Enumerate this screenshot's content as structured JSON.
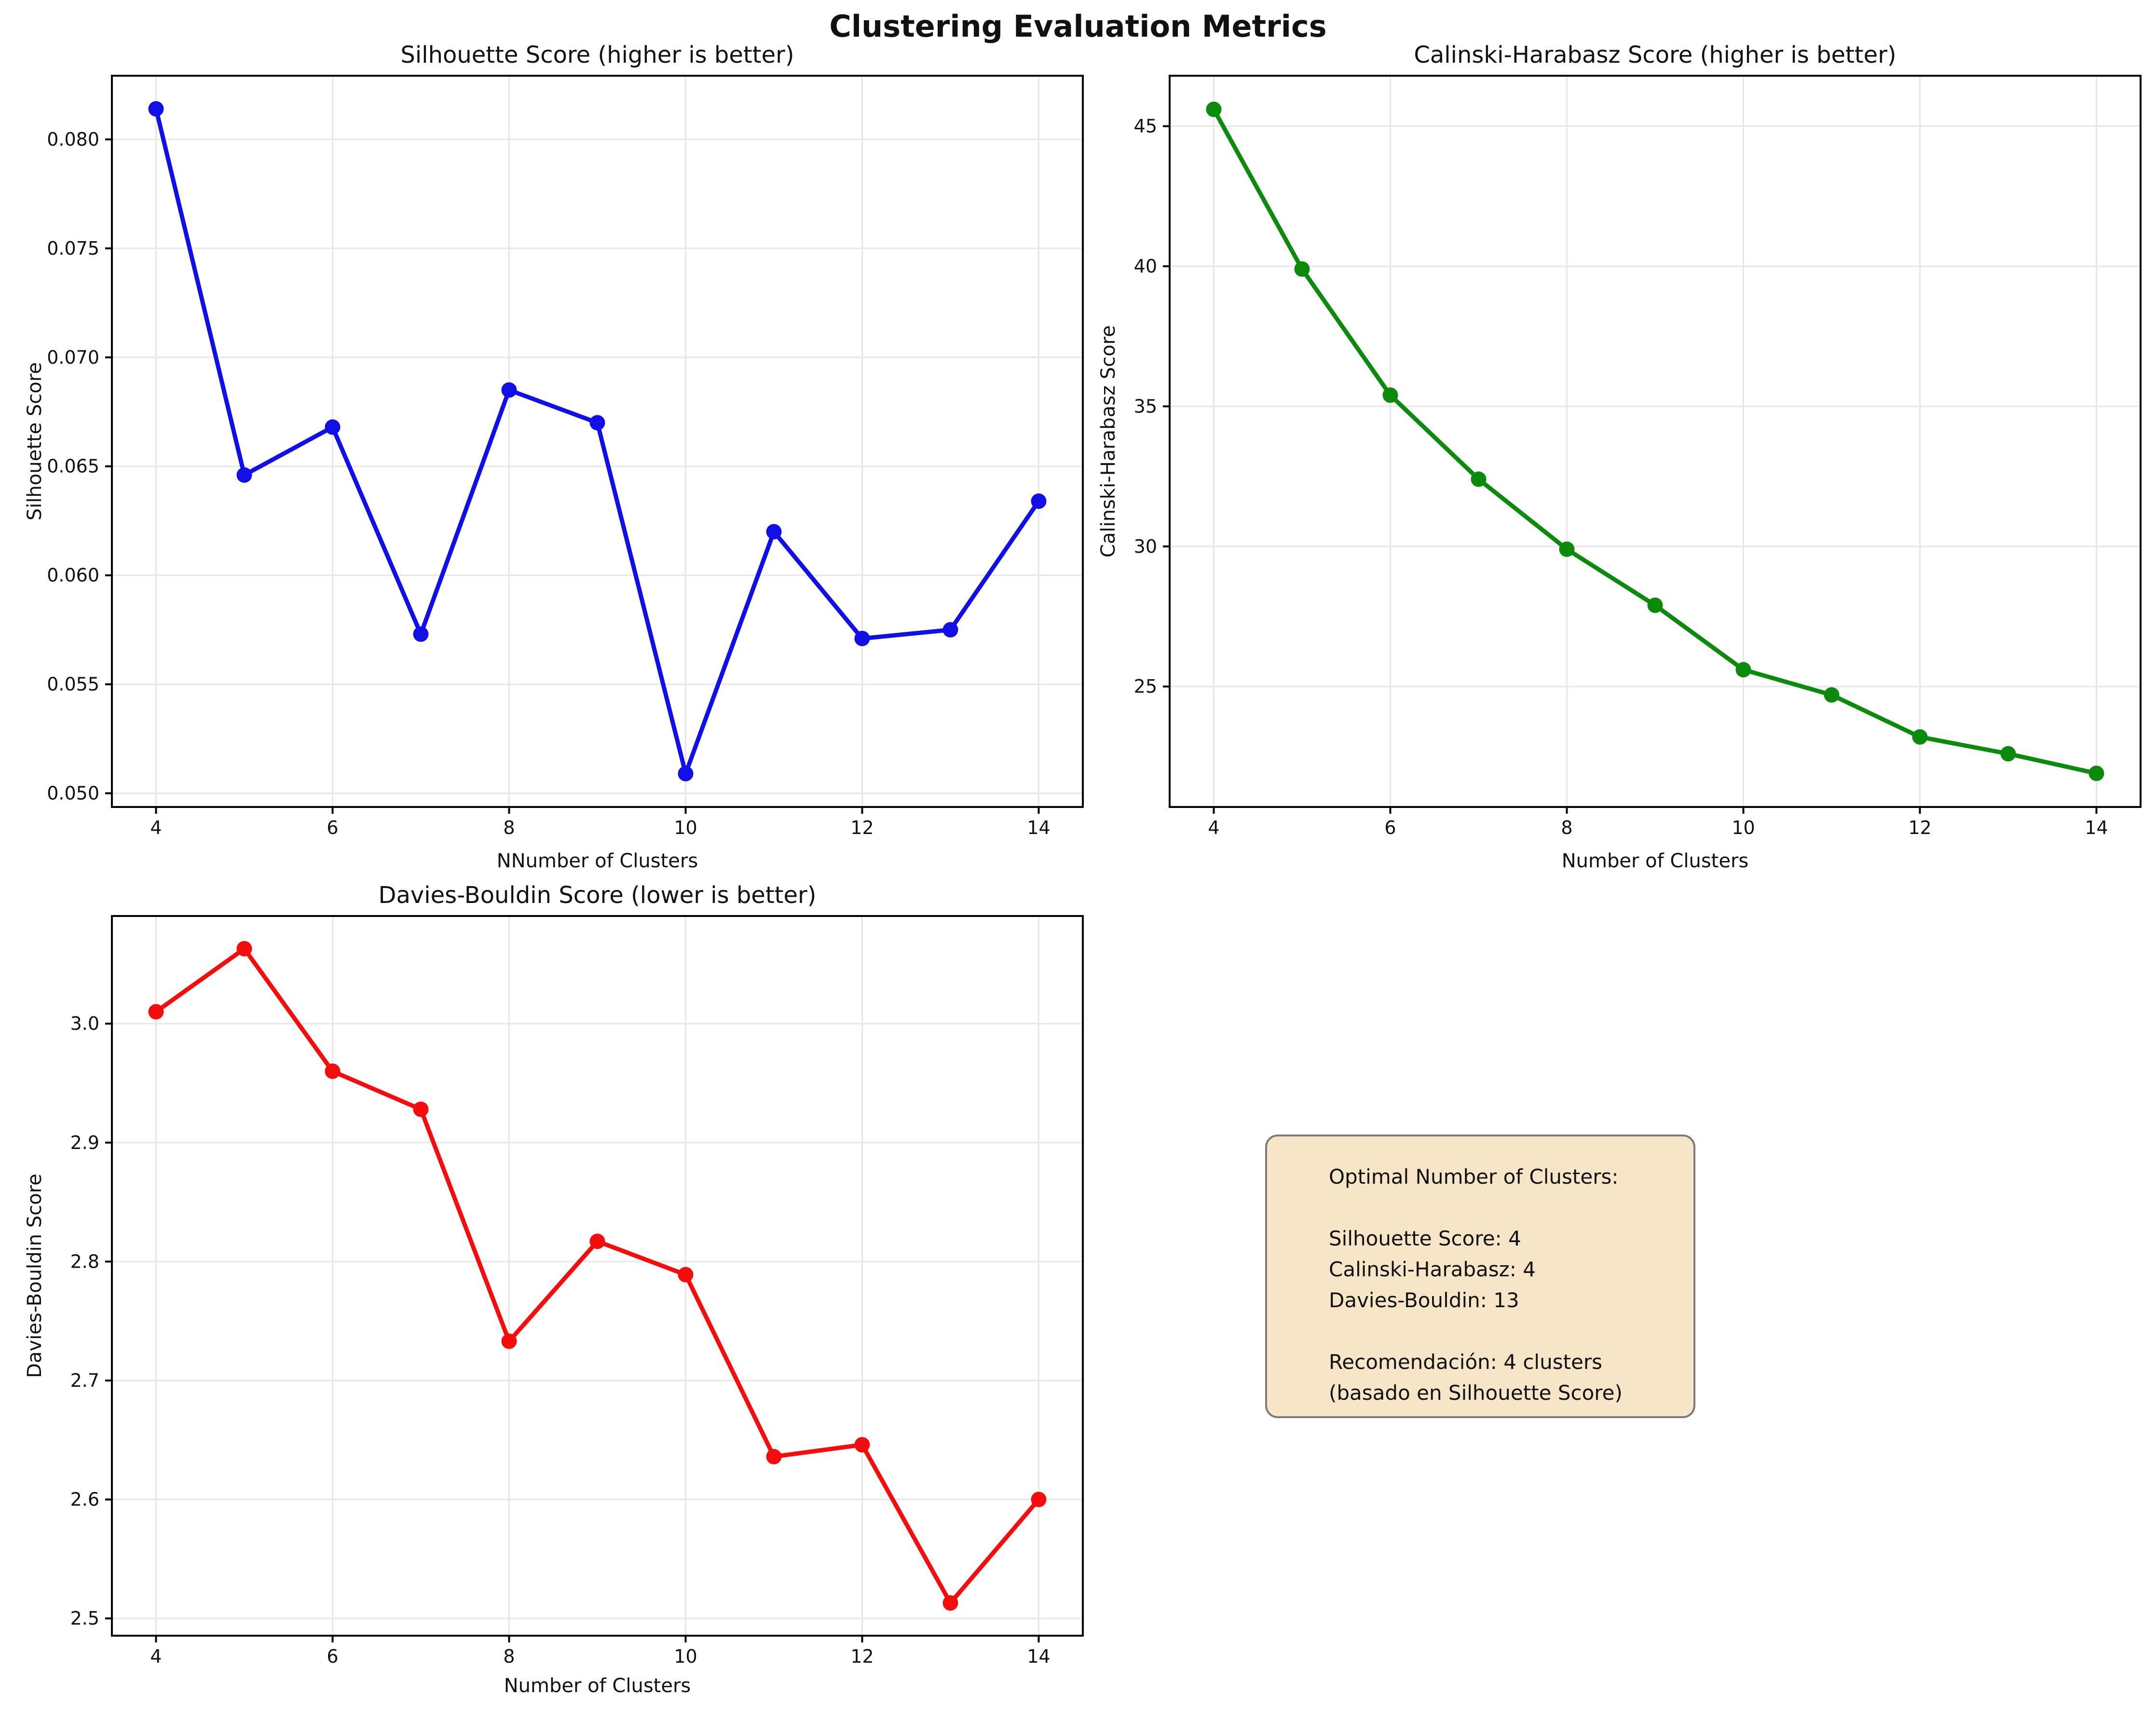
{
  "figure": {
    "title": "Clustering Evaluation Metrics",
    "background": "#ffffff"
  },
  "chart_data": [
    {
      "id": "silhouette",
      "type": "line",
      "title": "Silhouette Score (higher is better)",
      "xlabel": "NNumber of Clusters",
      "ylabel": "Silhouette Score",
      "color": "#0f0fe6",
      "x": [
        4,
        5,
        6,
        7,
        8,
        9,
        10,
        11,
        12,
        13,
        14
      ],
      "y": [
        0.0814,
        0.0646,
        0.0668,
        0.0573,
        0.0685,
        0.067,
        0.0509,
        0.062,
        0.0571,
        0.0575,
        0.0634
      ],
      "xlim": [
        3.5,
        14.5
      ],
      "ylim": [
        0.04937,
        0.08292
      ],
      "xticks": [
        4,
        6,
        8,
        10,
        12,
        14
      ],
      "yticks": [
        0.05,
        0.055,
        0.06,
        0.065,
        0.07,
        0.075,
        0.08
      ],
      "xtick_decimals": 0,
      "ytick_decimals": 3,
      "grid": true,
      "legend": null
    },
    {
      "id": "calinski-harabasz",
      "type": "line",
      "title": "Calinski-Harabasz Score (higher is better)",
      "xlabel": "Number of Clusters",
      "ylabel": "Calinski-Harabasz Score",
      "color": "#0c8a0c",
      "x": [
        4,
        5,
        6,
        7,
        8,
        9,
        10,
        11,
        12,
        13,
        14
      ],
      "y": [
        45.6,
        39.9,
        35.4,
        32.4,
        29.9,
        27.9,
        25.6,
        24.7,
        23.2,
        22.6,
        21.9
      ],
      "xlim": [
        3.5,
        14.5
      ],
      "ylim": [
        20.7,
        46.8
      ],
      "xticks": [
        4,
        6,
        8,
        10,
        12,
        14
      ],
      "yticks": [
        25,
        30,
        35,
        40,
        45
      ],
      "xtick_decimals": 0,
      "ytick_decimals": 0,
      "grid": true,
      "legend": null
    },
    {
      "id": "davies-bouldin",
      "type": "line",
      "title": "Davies-Bouldin Score (lower is better)",
      "xlabel": "Number of Clusters",
      "ylabel": "Davies-Bouldin Score",
      "color": "#f50d0d",
      "x": [
        4,
        5,
        6,
        7,
        8,
        9,
        10,
        11,
        12,
        13,
        14
      ],
      "y": [
        3.01,
        3.063,
        2.96,
        2.928,
        2.733,
        2.817,
        2.789,
        2.636,
        2.646,
        2.513,
        2.6
      ],
      "xlim": [
        3.5,
        14.5
      ],
      "ylim": [
        2.4855,
        3.0905
      ],
      "xticks": [
        4,
        6,
        8,
        10,
        12,
        14
      ],
      "yticks": [
        2.5,
        2.6,
        2.7,
        2.8,
        2.9,
        3.0
      ],
      "xtick_decimals": 0,
      "ytick_decimals": 1,
      "grid": true,
      "legend": null
    }
  ],
  "annotation": {
    "lines": [
      "Optimal Number of Clusters:",
      "",
      "Silhouette Score: 4",
      "Calinski-Harabasz: 4",
      "Davies-Bouldin: 13",
      "",
      "Recomendación: 4 clusters",
      "(basado en Silhouette Score)"
    ],
    "background": "#f6e5c6",
    "border_color": "#7b7b7b"
  }
}
